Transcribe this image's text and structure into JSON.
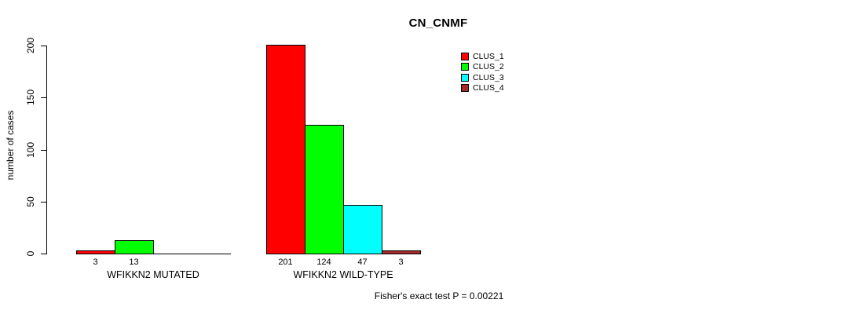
{
  "chart_data": {
    "type": "bar",
    "title": "CN_CNMF",
    "ylabel": "number of cases",
    "xlabel": "",
    "ylim": [
      0,
      200
    ],
    "yticks": [
      0,
      50,
      100,
      150,
      200
    ],
    "grid": false,
    "legend_position": "top-right",
    "categories": [
      "WFIKKN2 MUTATED",
      "WFIKKN2 WILD-TYPE"
    ],
    "series": [
      {
        "name": "CLUS_1",
        "color": "#FF0000",
        "values": [
          3,
          201
        ]
      },
      {
        "name": "CLUS_2",
        "color": "#00FF00",
        "values": [
          13,
          124
        ]
      },
      {
        "name": "CLUS_3",
        "color": "#00FFFF",
        "values": [
          0,
          47
        ]
      },
      {
        "name": "CLUS_4",
        "color": "#A52A2A",
        "values": [
          0,
          3
        ]
      }
    ],
    "bar_value_labels": [
      [
        "3",
        "13",
        "",
        ""
      ],
      [
        "201",
        "124",
        "47",
        "3"
      ]
    ],
    "annotation": "Fisher's exact test P = 0.00221"
  }
}
